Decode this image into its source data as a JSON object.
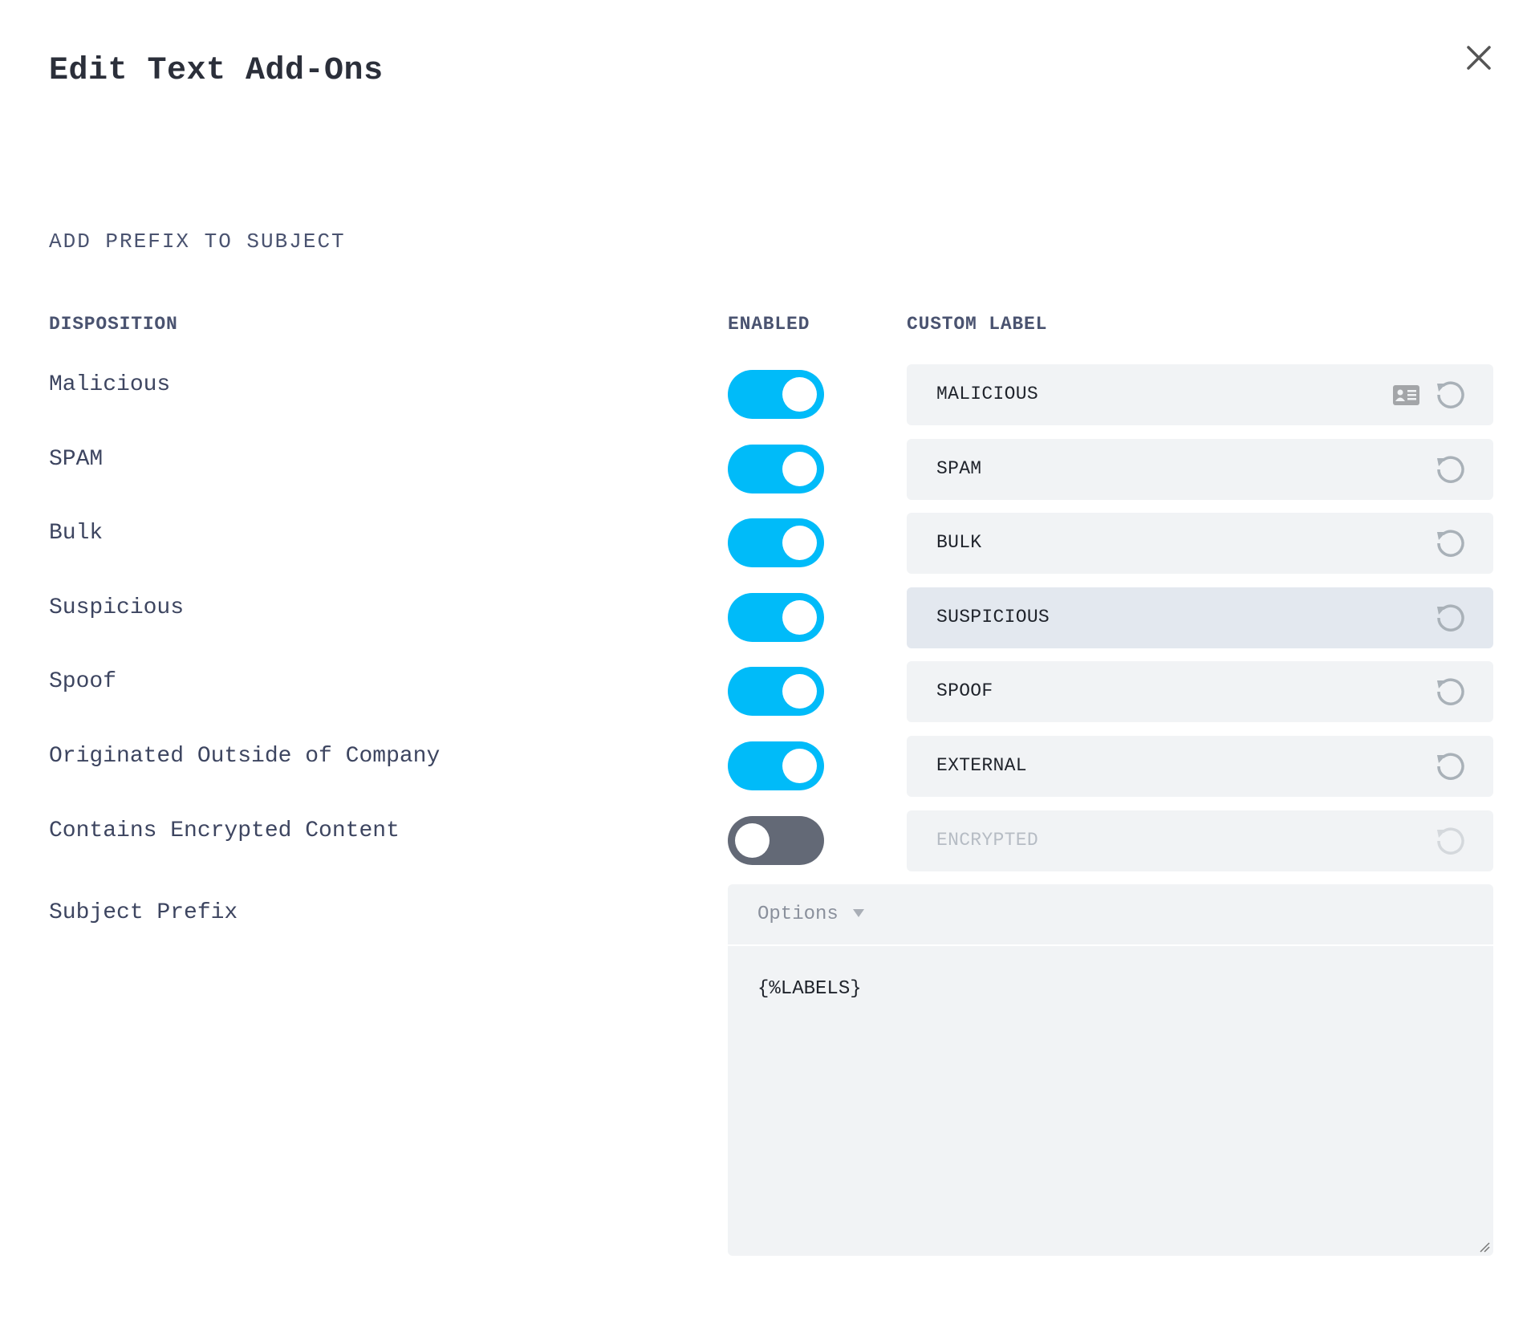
{
  "dialog": {
    "title": "Edit Text Add-Ons",
    "close_icon": "close-icon"
  },
  "section": {
    "heading": "ADD PREFIX TO SUBJECT"
  },
  "columns": {
    "disposition": "DISPOSITION",
    "enabled": "ENABLED",
    "custom_label": "CUSTOM LABEL"
  },
  "rows": [
    {
      "disposition": "Malicious",
      "enabled": true,
      "custom_label": "MALICIOUS",
      "has_card_icon": true
    },
    {
      "disposition": "SPAM",
      "enabled": true,
      "custom_label": "SPAM"
    },
    {
      "disposition": "Bulk",
      "enabled": true,
      "custom_label": "BULK"
    },
    {
      "disposition": "Suspicious",
      "enabled": true,
      "custom_label": "SUSPICIOUS",
      "hovered": true
    },
    {
      "disposition": "Spoof",
      "enabled": true,
      "custom_label": "SPOOF"
    },
    {
      "disposition": "Originated Outside of Company",
      "enabled": true,
      "custom_label": "EXTERNAL"
    },
    {
      "disposition": "Contains Encrypted Content",
      "enabled": false,
      "custom_label": "ENCRYPTED"
    }
  ],
  "subject_prefix": {
    "label": "Subject Prefix",
    "options_label": "Options",
    "value": "{%LABELS}"
  },
  "colors": {
    "toggle_on": "#00bbf9",
    "toggle_off": "#636976",
    "field_bg": "#f1f3f5"
  }
}
